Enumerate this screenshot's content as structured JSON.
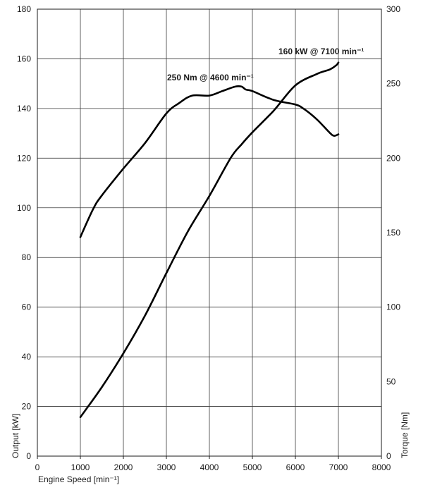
{
  "chart_data": {
    "type": "line",
    "title": "",
    "xlabel": "Engine Speed [min⁻¹]",
    "ylabel": "Output [kW]",
    "y2label": "Torque [Nm]",
    "xlim": [
      0,
      8000
    ],
    "ylim": [
      0,
      180
    ],
    "y2lim": [
      0,
      300
    ],
    "x_ticks": [
      "0",
      "1000",
      "2000",
      "3000",
      "4000",
      "5000",
      "6000",
      "7000",
      "8000"
    ],
    "y_ticks": [
      "0",
      "20",
      "40",
      "60",
      "80",
      "100",
      "120",
      "140",
      "160",
      "180"
    ],
    "y2_ticks": [
      "0",
      "50",
      "100",
      "150",
      "200",
      "250",
      "300"
    ],
    "grid": "vertical and horizontal",
    "series": [
      {
        "axis": "left",
        "x": [
          1000,
          1500,
          2000,
          2500,
          3000,
          3500,
          4000,
          4500,
          4750,
          5000,
          5500,
          6000,
          6500,
          6800,
          6950,
          7000
        ],
        "values": [
          15.7,
          27.8,
          41.4,
          56.5,
          73.7,
          90.5,
          104.8,
          120.2,
          125.6,
          130.4,
          139.2,
          149.3,
          153.9,
          155.7,
          157.4,
          158.5
        ]
      },
      {
        "axis": "right",
        "x": [
          1000,
          1300,
          1500,
          2000,
          2500,
          3000,
          3300,
          3600,
          4000,
          4300,
          4600,
          4750,
          4850,
          5000,
          5500,
          6000,
          6200,
          6500,
          6800,
          6900,
          7000
        ],
        "values": [
          147,
          166,
          175,
          193,
          210,
          230,
          237,
          242,
          242,
          245,
          248,
          248,
          246,
          245,
          239,
          236,
          233,
          226,
          217,
          215,
          216
        ]
      }
    ],
    "annotations": [
      {
        "text": "250 Nm @ 4600 min⁻¹"
      },
      {
        "text": "160 kW @ 7100 min⁻¹"
      }
    ]
  }
}
